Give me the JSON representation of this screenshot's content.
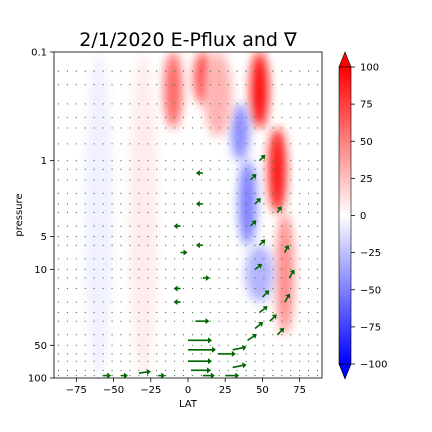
{
  "chart_data": {
    "type": "heatmap",
    "title": "2/1/2020 E-Pflux and ∇",
    "xlabel": "LAT",
    "ylabel": "pressure",
    "xlim": [
      -90,
      90
    ],
    "ylim": [
      100,
      0.1
    ],
    "yscale": "log",
    "x_ticks": [
      -75,
      -50,
      -25,
      0,
      25,
      50,
      75
    ],
    "x_tick_labels": [
      "−75",
      "−50",
      "−25",
      "0",
      "25",
      "50",
      "75"
    ],
    "y_ticks": [
      0.1,
      1,
      5,
      10,
      50,
      100
    ],
    "y_tick_labels": [
      "0.1",
      "1",
      "5",
      "10",
      "50",
      "100"
    ],
    "colorbar": {
      "min": -100,
      "max": 100,
      "colormap": "bwr",
      "ticks": [
        100,
        75,
        50,
        25,
        0,
        -25,
        -50,
        -75,
        -100
      ],
      "tick_labels": [
        "100",
        "75",
        "50",
        "25",
        "0",
        "−25",
        "−50",
        "−75",
        "−100"
      ],
      "extend": "both"
    },
    "divergence_features": [
      {
        "lat": 48,
        "p_top": 0.1,
        "p_bottom": 0.5,
        "value": 95
      },
      {
        "lat": 60,
        "p_top": 0.5,
        "p_bottom": 3,
        "value": 90
      },
      {
        "lat": 65,
        "p_top": 3,
        "p_bottom": 40,
        "value": 45
      },
      {
        "lat": 35,
        "p_top": 0.3,
        "p_bottom": 1,
        "value": -45
      },
      {
        "lat": 40,
        "p_top": 1,
        "p_bottom": 6,
        "value": -50
      },
      {
        "lat": 48,
        "p_top": 6,
        "p_bottom": 20,
        "value": -30
      },
      {
        "lat": -10,
        "p_top": 0.1,
        "p_bottom": 0.5,
        "value": 60
      },
      {
        "lat": 10,
        "p_top": 0.1,
        "p_bottom": 0.3,
        "value": 70
      },
      {
        "lat": 20,
        "p_top": 0.1,
        "p_bottom": 0.6,
        "value": 30
      },
      {
        "lat": -60,
        "p_top": 0.1,
        "p_bottom": 100,
        "value": -6
      },
      {
        "lat": -30,
        "p_top": 0.1,
        "p_bottom": 100,
        "value": 8
      }
    ],
    "flux_arrows": [
      {
        "lat": -57,
        "p": 95,
        "u": 4,
        "v": 0
      },
      {
        "lat": -45,
        "p": 95,
        "u": 3,
        "v": 0
      },
      {
        "lat": -33,
        "p": 90,
        "u": 8,
        "v": 1
      },
      {
        "lat": -20,
        "p": 95,
        "u": 3,
        "v": 0
      },
      {
        "lat": 0,
        "p": 45,
        "u": 20,
        "v": 0
      },
      {
        "lat": 0,
        "p": 55,
        "u": 24,
        "v": 0
      },
      {
        "lat": 0,
        "p": 70,
        "u": 20,
        "v": 0
      },
      {
        "lat": 2,
        "p": 85,
        "u": 16,
        "v": 0
      },
      {
        "lat": 10,
        "p": 95,
        "u": 8,
        "v": 0
      },
      {
        "lat": 25,
        "p": 95,
        "u": 10,
        "v": 0
      },
      {
        "lat": 30,
        "p": 80,
        "u": 10,
        "v": 2
      },
      {
        "lat": 5,
        "p": 30,
        "u": 10,
        "v": 0
      },
      {
        "lat": 20,
        "p": 60,
        "u": 14,
        "v": 0
      },
      {
        "lat": 30,
        "p": 55,
        "u": 10,
        "v": 2
      },
      {
        "lat": 40,
        "p": 45,
        "u": 6,
        "v": 4
      },
      {
        "lat": 45,
        "p": 35,
        "u": 5,
        "v": 4
      },
      {
        "lat": 48,
        "p": 25,
        "u": 5,
        "v": 4
      },
      {
        "lat": 50,
        "p": 18,
        "u": 4,
        "v": 4
      },
      {
        "lat": 55,
        "p": 30,
        "u": 4,
        "v": 4
      },
      {
        "lat": 60,
        "p": 40,
        "u": 4,
        "v": 4
      },
      {
        "lat": 65,
        "p": 20,
        "u": 3,
        "v": 5
      },
      {
        "lat": 68,
        "p": 12,
        "u": 3,
        "v": 5
      },
      {
        "lat": 65,
        "p": 7,
        "u": 2,
        "v": 4
      },
      {
        "lat": 45,
        "p": 10,
        "u": 4,
        "v": 3
      },
      {
        "lat": 48,
        "p": 6,
        "u": 3,
        "v": 3
      },
      {
        "lat": 42,
        "p": 4,
        "u": 3,
        "v": 3
      },
      {
        "lat": 45,
        "p": 2.5,
        "u": 3,
        "v": 3
      },
      {
        "lat": 42,
        "p": 1.5,
        "u": 3,
        "v": 3
      },
      {
        "lat": 48,
        "p": 1,
        "u": 3,
        "v": 3
      },
      {
        "lat": 60,
        "p": 3,
        "u": 2,
        "v": 3
      },
      {
        "lat": 10,
        "p": 1.3,
        "u": -3,
        "v": 0
      },
      {
        "lat": 10,
        "p": 2.5,
        "u": -3,
        "v": 0
      },
      {
        "lat": -5,
        "p": 4,
        "u": -3,
        "v": 0
      },
      {
        "lat": -5,
        "p": 7,
        "u": 3,
        "v": 0
      },
      {
        "lat": 10,
        "p": 6,
        "u": -3,
        "v": 0
      },
      {
        "lat": -5,
        "p": 15,
        "u": -3,
        "v": 0
      },
      {
        "lat": -5,
        "p": 20,
        "u": -3,
        "v": 0
      },
      {
        "lat": 10,
        "p": 12,
        "u": 3,
        "v": 0
      }
    ]
  }
}
